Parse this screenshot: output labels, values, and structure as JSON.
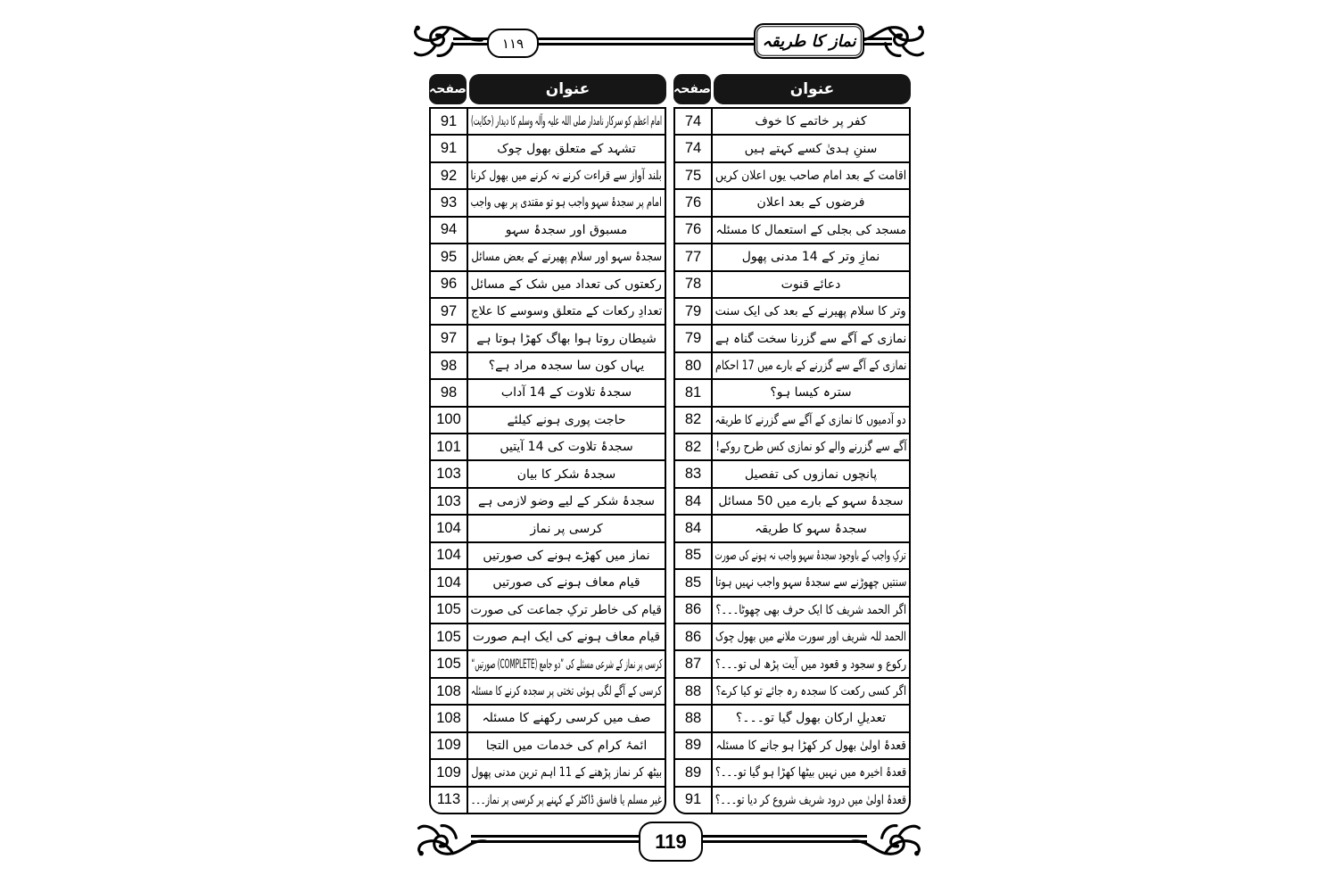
{
  "page_header": {
    "page_number_urdu": "۱۱۹",
    "book_title": "نماز کا طریقہ"
  },
  "page_footer": {
    "page_number": "119"
  },
  "colors": {
    "ink": "#000000",
    "paper": "#ffffff",
    "header_cell_bg": "#161616"
  },
  "toc": {
    "left_table": {
      "page_header": "صفحہ",
      "title_header": "عنوان",
      "rows": [
        {
          "page": "91",
          "title": "امام اعظم کو سرکار نامدار صلی اللہ علیہ وآلہ وسلم کا دیدار (حکایت)"
        },
        {
          "page": "91",
          "title": "تشہد کے متعلق بھول چوک"
        },
        {
          "page": "92",
          "title": "بلند آواز سے قراءت کرنے نہ کرنے میں بھول کرنا"
        },
        {
          "page": "93",
          "title": "امام پر سجدۂ سہو واجب ہو تو مقتدی پر بھی واجب"
        },
        {
          "page": "94",
          "title": "مسبوق اور سجدۂ سہو"
        },
        {
          "page": "95",
          "title": "سجدۂ سہو اور سلام پھیرنے کے بعض مسائل"
        },
        {
          "page": "96",
          "title": "رکعتوں کی تعداد میں شک کے مسائل"
        },
        {
          "page": "97",
          "title": "تعدادِ رکعات کے متعلق وسوسے کا علاج"
        },
        {
          "page": "97",
          "title": "شیطان روتا ہوا بھاگ کھڑا ہوتا ہے"
        },
        {
          "page": "98",
          "title": "یہاں کون سا سجدہ مراد ہے؟"
        },
        {
          "page": "98",
          "title": "سجدۂ تلاوت کے 14 آداب"
        },
        {
          "page": "100",
          "title": "حاجت پوری ہونے کیلئے"
        },
        {
          "page": "101",
          "title": "سجدۂ تلاوت کی 14 آیتیں"
        },
        {
          "page": "103",
          "title": "سجدۂ شکر کا بیان"
        },
        {
          "page": "103",
          "title": "سجدۂ شکر کے لیے وضو لازمی ہے"
        },
        {
          "page": "104",
          "title": "کرسی پر نماز"
        },
        {
          "page": "104",
          "title": "نماز میں کھڑے ہونے کی صورتیں"
        },
        {
          "page": "104",
          "title": "قیام معاف ہونے کی صورتیں"
        },
        {
          "page": "105",
          "title": "قیام کی خاطر ترکِ جماعت کی صورت"
        },
        {
          "page": "105",
          "title": "قیام معاف ہونے کی ایک اہم صورت"
        },
        {
          "page": "105",
          "title": "کرسی پر نماز کے شرعی مسئلے کی ”دو جامع (COMPLETE) صورتیں“"
        },
        {
          "page": "108",
          "title": "کرسی کے آگے لگی ہوئی تختی پر سجدہ کرنے کا مسئلہ"
        },
        {
          "page": "108",
          "title": "صف میں کرسی رکھنے کا مسئلہ"
        },
        {
          "page": "109",
          "title": "ائمۂ کرام کی خدمات میں التجا"
        },
        {
          "page": "109",
          "title": "بیٹھ کر نماز پڑھنے کے 11 اہم ترین مدنی پھول"
        },
        {
          "page": "113",
          "title": "غیر مسلم یا فاسق ڈاکٹر کے کہنے پر کرسی پر نماز۔۔۔"
        }
      ]
    },
    "right_table": {
      "page_header": "صفحہ",
      "title_header": "عنوان",
      "rows": [
        {
          "page": "74",
          "title": "کفر پر خاتمے کا خوف"
        },
        {
          "page": "74",
          "title": "سننِ ہدیٰ کسے کہتے ہیں"
        },
        {
          "page": "75",
          "title": "اقامت کے بعد امام صاحب یوں اعلان کریں"
        },
        {
          "page": "76",
          "title": "فرضوں کے بعد اعلان"
        },
        {
          "page": "76",
          "title": "مسجد کی بجلی کے استعمال کا مسئلہ"
        },
        {
          "page": "77",
          "title": "نمازِ وتر کے 14 مدنی پھول"
        },
        {
          "page": "78",
          "title": "دعائے قنوت"
        },
        {
          "page": "79",
          "title": "وتر کا سلام پھیرنے کے بعد کی ایک سنت"
        },
        {
          "page": "79",
          "title": "نمازی کے آگے سے گزرنا سخت گناہ ہے"
        },
        {
          "page": "80",
          "title": "نمازی کے آگے سے گزرنے کے بارے میں 17 احکام"
        },
        {
          "page": "81",
          "title": "سترہ کیسا ہو؟"
        },
        {
          "page": "82",
          "title": "دو آدمیوں کا نمازی کے آگے سے گزرنے کا طریقہ"
        },
        {
          "page": "82",
          "title": "آگے سے گزرنے والے کو نمازی کس طرح روکے!"
        },
        {
          "page": "83",
          "title": "پانچوں نمازوں کی تفصیل"
        },
        {
          "page": "84",
          "title": "سجدۂ سہو کے بارے میں 50 مسائل"
        },
        {
          "page": "84",
          "title": "سجدۂ سہو کا طریقہ"
        },
        {
          "page": "85",
          "title": "ترکِ واجب کے باوجود سجدۂ سہو واجب نہ ہونے کی صورت"
        },
        {
          "page": "85",
          "title": "سنتیں چھوڑنے سے سجدۂ سہو واجب نہیں ہوتا"
        },
        {
          "page": "86",
          "title": "اگر الحمد شریف کا ایک حرف بھی چھوٹا۔۔۔؟"
        },
        {
          "page": "86",
          "title": "الحمد للہ شریف اور سورت ملانے میں بھول چوک"
        },
        {
          "page": "87",
          "title": "رکوع و سجود و قعود میں آیت پڑھ لی تو۔۔۔؟"
        },
        {
          "page": "88",
          "title": "اگر کسی رکعت کا سجدہ رہ جائے تو کیا کرے؟"
        },
        {
          "page": "88",
          "title": "تعدیلِ ارکان بھول گیا تو۔۔۔؟"
        },
        {
          "page": "89",
          "title": "قعدۂ اولیٰ بھول کر کھڑا ہو جانے کا مسئلہ"
        },
        {
          "page": "89",
          "title": "قعدۂ اخیرہ میں نہیں بیٹھا کھڑا ہو گیا تو۔۔۔؟"
        },
        {
          "page": "91",
          "title": "قعدۂ اولیٰ میں درود شریف شروع کر دیا تو۔۔۔؟"
        }
      ]
    }
  }
}
